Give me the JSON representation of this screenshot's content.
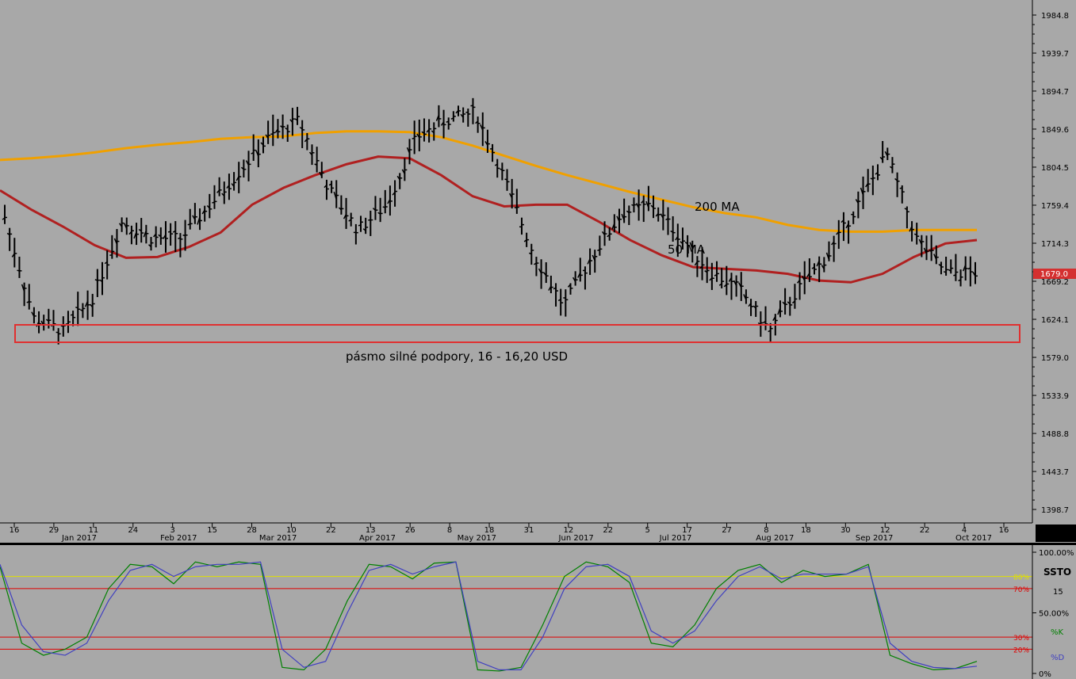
{
  "chart_data": [
    {
      "type": "ohlc",
      "panel": "price",
      "y_ticks": [
        1984.8,
        1939.7,
        1894.7,
        1849.6,
        1804.5,
        1759.4,
        1714.3,
        1669.2,
        1624.1,
        1579.0,
        1533.9,
        1488.8,
        1443.7,
        1398.7
      ],
      "y_tick_labels": [
        "1984.8",
        "1939.7",
        "1894.7",
        "1849.6",
        "1804.5",
        "1759.4",
        "1714.3",
        "1669.2",
        "1624.1",
        "1579.0",
        "1533.9",
        "1488.8",
        "1443.7",
        "1398.7"
      ],
      "ylim": [
        1380,
        2000
      ],
      "last_price": 1679.0,
      "last_price_label": "1679.0",
      "day_labels": [
        "16",
        "29",
        "11",
        "24",
        "3",
        "15",
        "28",
        "10",
        "22",
        "13",
        "26",
        "8",
        "18",
        "31",
        "12",
        "22",
        "5",
        "17",
        "27",
        "8",
        "18",
        "30",
        "12",
        "22",
        "4",
        "16"
      ],
      "month_labels": [
        "Jan 2017",
        "Feb 2017",
        "Mar 2017",
        "Apr 2017",
        "May 2017",
        "Jun 2017",
        "Jul 2017",
        "Aug 2017",
        "Sep 2017",
        "Oct 2017"
      ],
      "series": [
        {
          "name": "200 MA",
          "color": "#f0a000",
          "values": [
            1813,
            1815,
            1818,
            1822,
            1827,
            1831,
            1834,
            1838,
            1840,
            1841,
            1845,
            1847,
            1847,
            1846,
            1840,
            1830,
            1818,
            1806,
            1795,
            1785,
            1775,
            1766,
            1757,
            1750,
            1745,
            1736,
            1730,
            1728,
            1728,
            1730,
            1730,
            1730
          ]
        },
        {
          "name": "50 MA",
          "color": "#b02020",
          "values": [
            1777,
            1754,
            1734,
            1712,
            1697,
            1698,
            1710,
            1727,
            1760,
            1780,
            1795,
            1808,
            1817,
            1815,
            1795,
            1770,
            1758,
            1760,
            1760,
            1740,
            1718,
            1700,
            1686,
            1684,
            1682,
            1678,
            1670,
            1668,
            1678,
            1698,
            1714,
            1718
          ]
        },
        {
          "name": "price",
          "color": "#000000",
          "values": [
            1745,
            1625,
            1610,
            1650,
            1740,
            1720,
            1720,
            1760,
            1800,
            1840,
            1860,
            1780,
            1730,
            1760,
            1840,
            1860,
            1870,
            1790,
            1700,
            1640,
            1700,
            1750,
            1760,
            1720,
            1680,
            1660,
            1610,
            1660,
            1700,
            1760,
            1820,
            1720,
            1680,
            1679
          ]
        }
      ],
      "annotations": [
        {
          "text": "200 MA"
        },
        {
          "text": "50 MA"
        },
        {
          "text": "pásmo silné podpory, 16 - 16,20 USD",
          "band": [
            1598,
            1620
          ]
        }
      ]
    },
    {
      "type": "line",
      "panel": "oscillator",
      "title": "SSTO",
      "period_label": "15",
      "ylim": [
        0,
        100
      ],
      "y_tick_labels": [
        "100.00%",
        "50.00%",
        "0%"
      ],
      "levels": [
        {
          "value": 80,
          "label": "80%",
          "color": "#e0e000"
        },
        {
          "value": 70,
          "label": "70%",
          "color": "#e00000"
        },
        {
          "value": 30,
          "label": "30%",
          "color": "#e00000"
        },
        {
          "value": 20,
          "label": "20%",
          "color": "#e00000"
        }
      ],
      "series": [
        {
          "name": "%K",
          "color": "#008000",
          "values": [
            88,
            25,
            15,
            20,
            30,
            70,
            90,
            88,
            74,
            92,
            88,
            92,
            90,
            5,
            3,
            20,
            60,
            90,
            88,
            78,
            91,
            92,
            3,
            2,
            5,
            40,
            80,
            92,
            88,
            75,
            25,
            22,
            40,
            70,
            85,
            90,
            75,
            85,
            80,
            82,
            90,
            15,
            8,
            3,
            4,
            10
          ]
        },
        {
          "name": "%D",
          "color": "#4040c0",
          "values": [
            90,
            40,
            18,
            15,
            25,
            60,
            85,
            90,
            80,
            88,
            90,
            90,
            92,
            20,
            5,
            10,
            50,
            85,
            90,
            82,
            88,
            92,
            10,
            3,
            3,
            30,
            70,
            88,
            90,
            80,
            35,
            25,
            35,
            60,
            80,
            88,
            78,
            82,
            82,
            82,
            88,
            25,
            10,
            5,
            4,
            6
          ]
        }
      ]
    }
  ]
}
